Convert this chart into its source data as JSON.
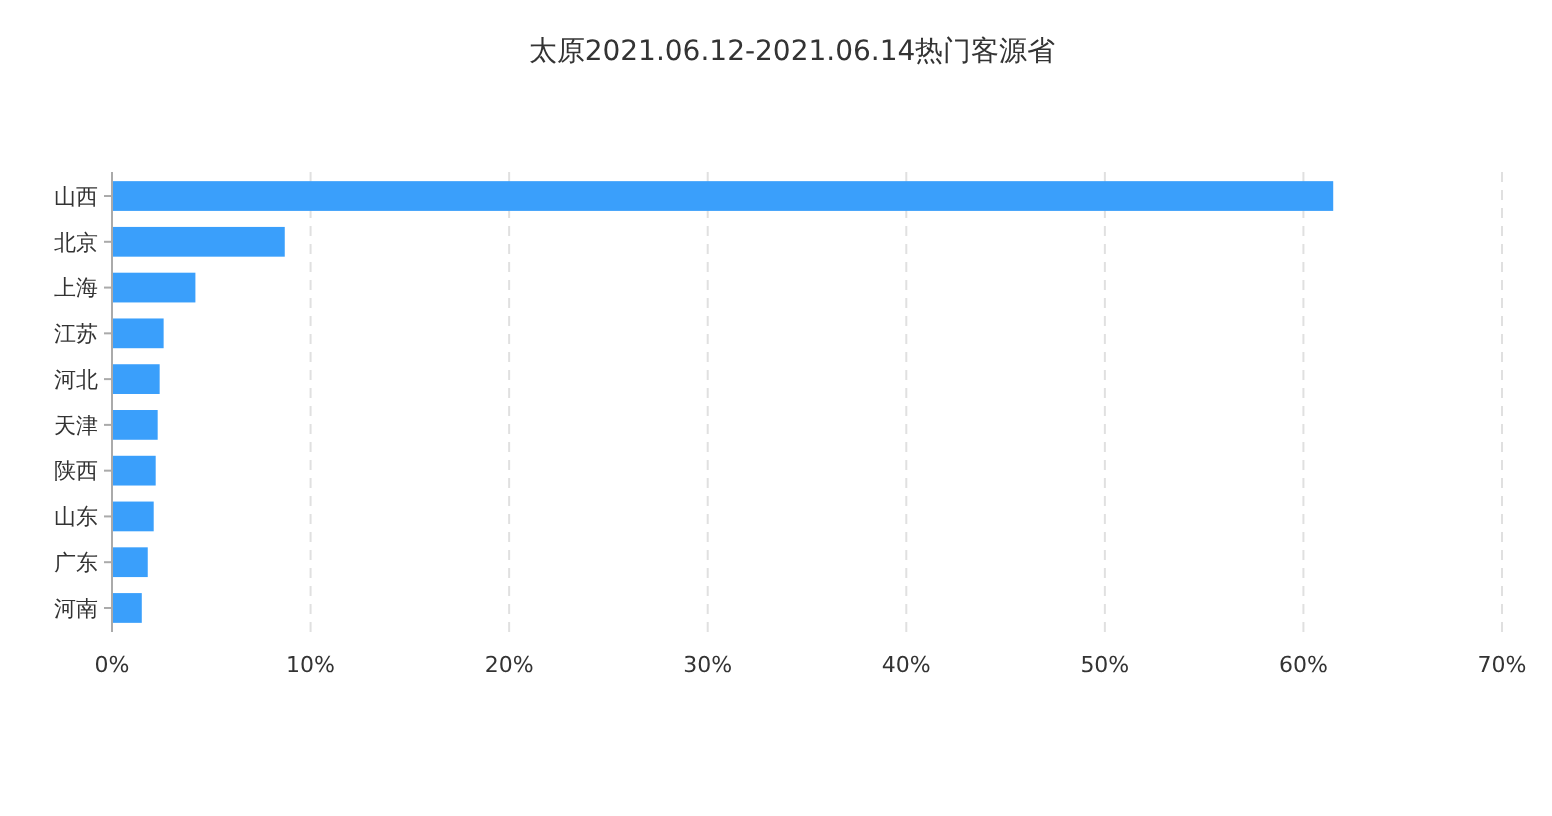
{
  "chart_data": {
    "type": "bar",
    "orientation": "horizontal",
    "title": "太原2021.06.12-2021.06.14热门客源省",
    "categories": [
      "山西",
      "北京",
      "上海",
      "江苏",
      "河北",
      "天津",
      "陕西",
      "山东",
      "广东",
      "河南"
    ],
    "values": [
      61.5,
      8.7,
      4.2,
      2.6,
      2.4,
      2.3,
      2.2,
      2.1,
      1.8,
      1.5
    ],
    "color": "#3a9ffb",
    "xlim": [
      0,
      70
    ],
    "xticks": [
      {
        "value": 0,
        "label": "0%"
      },
      {
        "value": 10,
        "label": "10%"
      },
      {
        "value": 20,
        "label": "20%"
      },
      {
        "value": 30,
        "label": "30%"
      },
      {
        "value": 40,
        "label": "40%"
      },
      {
        "value": 50,
        "label": "50%"
      },
      {
        "value": 60,
        "label": "60%"
      },
      {
        "value": 70,
        "label": "70%"
      }
    ],
    "grid": "x"
  }
}
